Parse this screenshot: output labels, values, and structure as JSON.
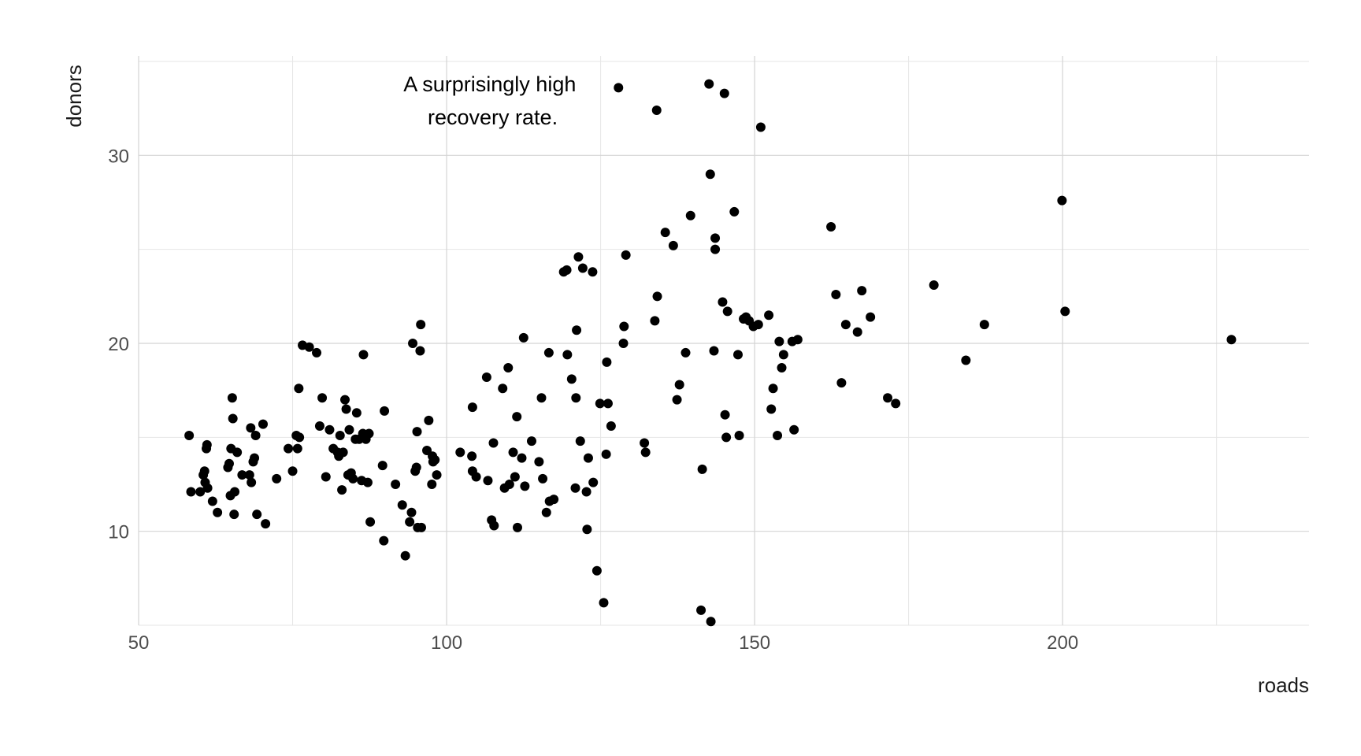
{
  "chart_data": {
    "type": "scatter",
    "title": "",
    "xlabel": "roads",
    "ylabel": "donors",
    "xlim": [
      50,
      240
    ],
    "ylim": [
      5,
      35
    ],
    "x_ticks": [
      50,
      100,
      150,
      200
    ],
    "x_tick_labels": [
      "50",
      "100",
      "150",
      "200"
    ],
    "x_minor": [
      75,
      125,
      175,
      225
    ],
    "y_ticks": [
      10,
      20,
      30
    ],
    "y_tick_labels": [
      "10",
      "20",
      "30"
    ],
    "y_minor": [
      5,
      15,
      25,
      35
    ],
    "grid": true,
    "point_color": "#000000",
    "annotation": {
      "lines": [
        "A surprisingly high",
        " recovery rate."
      ],
      "x": 107,
      "y": 33.4
    },
    "points": [
      [
        58.2,
        15.1
      ],
      [
        58.5,
        12.1
      ],
      [
        60,
        12.1
      ],
      [
        60.5,
        13
      ],
      [
        60.7,
        13.2
      ],
      [
        60.8,
        12.6
      ],
      [
        61,
        14.4
      ],
      [
        61.1,
        14.6
      ],
      [
        61.2,
        12.3
      ],
      [
        62,
        11.6
      ],
      [
        62.8,
        11
      ],
      [
        64.5,
        13.4
      ],
      [
        64.7,
        13.6
      ],
      [
        64.9,
        11.9
      ],
      [
        65,
        14.4
      ],
      [
        65.2,
        17.1
      ],
      [
        65.3,
        16
      ],
      [
        65.5,
        10.9
      ],
      [
        65.6,
        12.1
      ],
      [
        66,
        14.2
      ],
      [
        66.8,
        13
      ],
      [
        68,
        13
      ],
      [
        68.2,
        15.5
      ],
      [
        68.3,
        12.6
      ],
      [
        68.6,
        13.7
      ],
      [
        68.8,
        13.9
      ],
      [
        69,
        15.1
      ],
      [
        69.2,
        10.9
      ],
      [
        70.2,
        15.7
      ],
      [
        70.6,
        10.4
      ],
      [
        72.4,
        12.8
      ],
      [
        74.3,
        14.4
      ],
      [
        75,
        13.2
      ],
      [
        75.6,
        15.1
      ],
      [
        75.8,
        14.4
      ],
      [
        76,
        17.6
      ],
      [
        76.1,
        15
      ],
      [
        76.6,
        19.9
      ],
      [
        77.7,
        19.8
      ],
      [
        78.9,
        19.5
      ],
      [
        79.4,
        15.6
      ],
      [
        79.8,
        17.1
      ],
      [
        80.4,
        12.9
      ],
      [
        81,
        15.4
      ],
      [
        81.6,
        14.4
      ],
      [
        82.3,
        14.2
      ],
      [
        82.5,
        14
      ],
      [
        82.7,
        15.1
      ],
      [
        83,
        12.2
      ],
      [
        83.2,
        14.2
      ],
      [
        83.5,
        17
      ],
      [
        83.7,
        16.5
      ],
      [
        84,
        13
      ],
      [
        84.2,
        15.4
      ],
      [
        84.5,
        13.1
      ],
      [
        84.8,
        12.8
      ],
      [
        85.2,
        14.9
      ],
      [
        85.4,
        16.3
      ],
      [
        85.8,
        14.9
      ],
      [
        86.2,
        12.7
      ],
      [
        86.4,
        15.2
      ],
      [
        86.5,
        19.4
      ],
      [
        86.9,
        14.9
      ],
      [
        87.2,
        12.6
      ],
      [
        87.4,
        15.2
      ],
      [
        87.6,
        10.5
      ],
      [
        89.6,
        13.5
      ],
      [
        89.8,
        9.5
      ],
      [
        89.9,
        16.4
      ],
      [
        91.7,
        12.5
      ],
      [
        92.8,
        11.4
      ],
      [
        93.3,
        8.7
      ],
      [
        94,
        10.5
      ],
      [
        94.3,
        11
      ],
      [
        94.5,
        20
      ],
      [
        94.9,
        13.2
      ],
      [
        95.1,
        13.4
      ],
      [
        95.2,
        15.3
      ],
      [
        95.3,
        10.2
      ],
      [
        95.7,
        19.6
      ],
      [
        95.8,
        21
      ],
      [
        95.9,
        10.2
      ],
      [
        96.8,
        14.3
      ],
      [
        97.1,
        15.9
      ],
      [
        97.6,
        12.5
      ],
      [
        97.7,
        14
      ],
      [
        97.8,
        13.7
      ],
      [
        98.1,
        13.8
      ],
      [
        98.4,
        13
      ],
      [
        102.2,
        14.2
      ],
      [
        104.1,
        14
      ],
      [
        104.2,
        13.2
      ],
      [
        104.2,
        16.6
      ],
      [
        104.8,
        12.9
      ],
      [
        106.5,
        18.2
      ],
      [
        106.7,
        12.7
      ],
      [
        107.3,
        10.6
      ],
      [
        107.6,
        14.7
      ],
      [
        107.7,
        10.3
      ],
      [
        109.1,
        17.6
      ],
      [
        109.4,
        12.3
      ],
      [
        110,
        18.7
      ],
      [
        110.2,
        12.5
      ],
      [
        110.8,
        14.2
      ],
      [
        111.1,
        12.9
      ],
      [
        111.4,
        16.1
      ],
      [
        111.5,
        10.2
      ],
      [
        112.2,
        13.9
      ],
      [
        112.5,
        20.3
      ],
      [
        112.7,
        12.4
      ],
      [
        113.8,
        14.8
      ],
      [
        115,
        13.7
      ],
      [
        115.4,
        17.1
      ],
      [
        115.6,
        12.8
      ],
      [
        116.2,
        11
      ],
      [
        116.6,
        19.5
      ],
      [
        116.7,
        11.6
      ],
      [
        117.4,
        11.7
      ],
      [
        119,
        23.8
      ],
      [
        119.5,
        23.9
      ],
      [
        119.6,
        19.4
      ],
      [
        120.3,
        18.1
      ],
      [
        120.9,
        12.3
      ],
      [
        121,
        17.1
      ],
      [
        121.1,
        20.7
      ],
      [
        121.4,
        24.6
      ],
      [
        121.7,
        14.8
      ],
      [
        122.1,
        24
      ],
      [
        122.7,
        12.1
      ],
      [
        122.8,
        10.1
      ],
      [
        123,
        13.9
      ],
      [
        123.7,
        23.8
      ],
      [
        123.8,
        12.6
      ],
      [
        124.4,
        7.9
      ],
      [
        124.9,
        16.8
      ],
      [
        125.5,
        6.2
      ],
      [
        125.9,
        14.1
      ],
      [
        126,
        19
      ],
      [
        126.2,
        16.8
      ],
      [
        126.7,
        15.6
      ],
      [
        127.9,
        33.6
      ],
      [
        128.7,
        20
      ],
      [
        128.8,
        20.9
      ],
      [
        129.1,
        24.7
      ],
      [
        132.1,
        14.7
      ],
      [
        132.3,
        14.2
      ],
      [
        133.8,
        21.2
      ],
      [
        134.1,
        32.4
      ],
      [
        134.2,
        22.5
      ],
      [
        135.5,
        25.9
      ],
      [
        136.8,
        25.2
      ],
      [
        137.4,
        17
      ],
      [
        137.8,
        17.8
      ],
      [
        138.8,
        19.5
      ],
      [
        139.6,
        26.8
      ],
      [
        141.3,
        5.8
      ],
      [
        141.5,
        13.3
      ],
      [
        142.6,
        33.8
      ],
      [
        142.8,
        29
      ],
      [
        142.9,
        5.2
      ],
      [
        143.4,
        19.6
      ],
      [
        143.6,
        25.6
      ],
      [
        143.6,
        25
      ],
      [
        144.8,
        22.2
      ],
      [
        145.1,
        33.3
      ],
      [
        145.2,
        16.2
      ],
      [
        145.4,
        15
      ],
      [
        145.6,
        21.7
      ],
      [
        146.7,
        27
      ],
      [
        147.3,
        19.4
      ],
      [
        147.5,
        15.1
      ],
      [
        148.2,
        21.3
      ],
      [
        148.6,
        21.4
      ],
      [
        149.1,
        21.2
      ],
      [
        149.8,
        20.9
      ],
      [
        150.6,
        21
      ],
      [
        151,
        31.5
      ],
      [
        152.3,
        21.5
      ],
      [
        152.7,
        16.5
      ],
      [
        153,
        17.6
      ],
      [
        153.7,
        15.1
      ],
      [
        154,
        20.1
      ],
      [
        154.4,
        18.7
      ],
      [
        154.7,
        19.4
      ],
      [
        156.1,
        20.1
      ],
      [
        156.4,
        15.4
      ],
      [
        157,
        20.2
      ],
      [
        162.4,
        26.2
      ],
      [
        163.2,
        22.6
      ],
      [
        164.1,
        17.9
      ],
      [
        164.8,
        21
      ],
      [
        166.7,
        20.6
      ],
      [
        167.4,
        22.8
      ],
      [
        168.8,
        21.4
      ],
      [
        171.6,
        17.1
      ],
      [
        172.9,
        16.8
      ],
      [
        179.1,
        23.1
      ],
      [
        184.3,
        19.1
      ],
      [
        187.3,
        21
      ],
      [
        199.9,
        27.6
      ],
      [
        200.4,
        21.7
      ],
      [
        227.4,
        20.2
      ]
    ]
  }
}
